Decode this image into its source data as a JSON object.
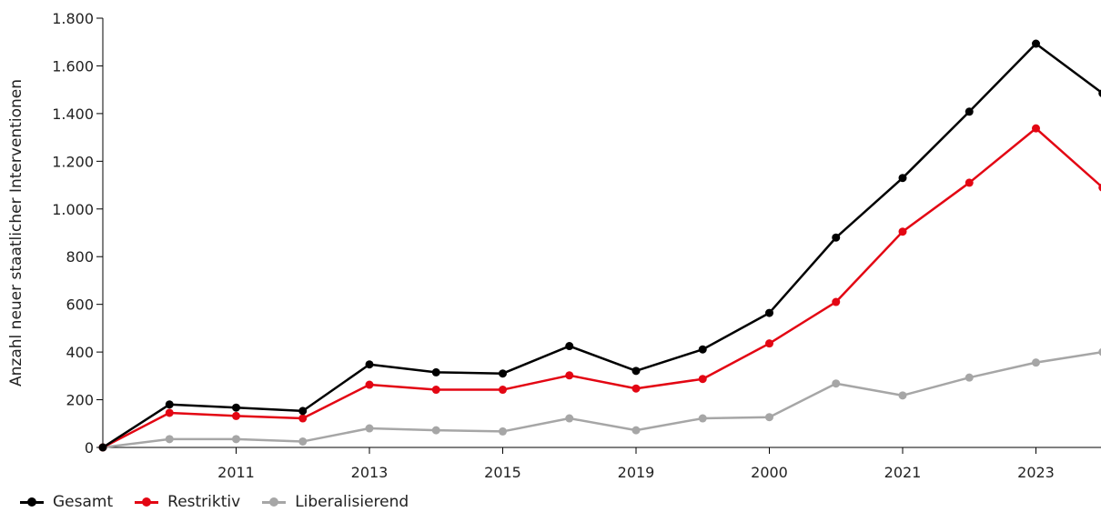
{
  "chart_data": {
    "type": "line",
    "title": "",
    "xlabel": "",
    "ylabel": "Anzahl neuer staatlicher Interventionen",
    "x_tick_labels": [
      "",
      "",
      "2011",
      "",
      "2013",
      "",
      "2015",
      "",
      "2019",
      "",
      "2000",
      "",
      "2021",
      "",
      "2023",
      ""
    ],
    "y_ticks": [
      0,
      200,
      400,
      600,
      800,
      1000,
      1200,
      1400,
      1600,
      1800
    ],
    "y_tick_labels": [
      "0",
      "200",
      "400",
      "600",
      "800",
      "1.000",
      "1.200",
      "1.400",
      "1.600",
      "1.800"
    ],
    "ylim": [
      0,
      1800
    ],
    "grid": false,
    "legend_position": "bottom-left",
    "series": [
      {
        "name": "Gesamt",
        "color": "#000000",
        "values": [
          0,
          180,
          167,
          153,
          348,
          315,
          310,
          425,
          321,
          411,
          564,
          880,
          1130,
          1408,
          1693,
          1485
        ]
      },
      {
        "name": "Restriktiv",
        "color": "#e30613",
        "values": [
          0,
          145,
          132,
          122,
          263,
          242,
          242,
          302,
          247,
          287,
          436,
          610,
          905,
          1110,
          1338,
          1090
        ]
      },
      {
        "name": "Liberalisierend",
        "color": "#a6a6a6",
        "values": [
          0,
          35,
          35,
          25,
          80,
          72,
          67,
          122,
          72,
          122,
          127,
          268,
          218,
          293,
          356,
          400
        ]
      }
    ]
  }
}
